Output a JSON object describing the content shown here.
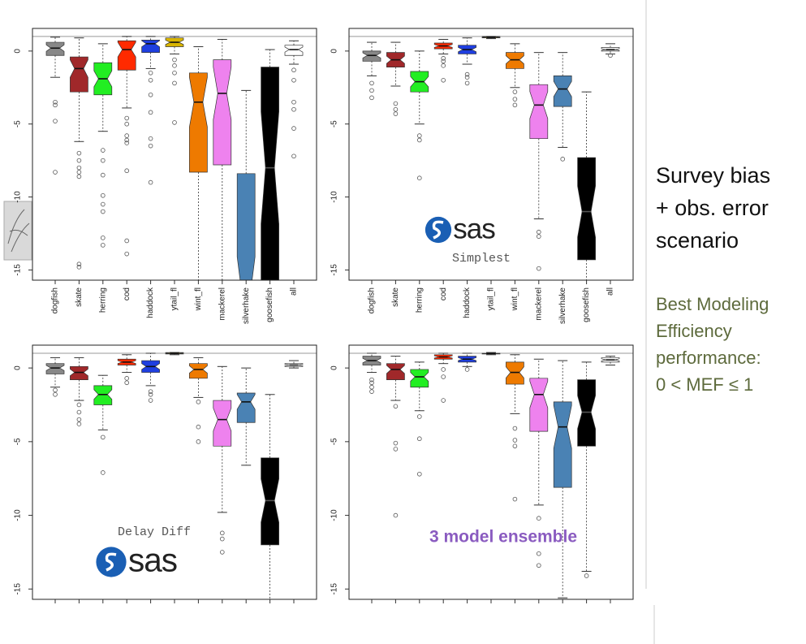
{
  "chart_data": [
    {
      "type": "box",
      "categories": [
        "dogfish",
        "skate",
        "herring",
        "cod",
        "haddock",
        "ytail_fl",
        "wint_fl",
        "mackerel",
        "silverhake",
        "goosefish",
        "all"
      ],
      "colors": [
        "#888888",
        "#a0282a",
        "#22ee22",
        "#ff2a00",
        "#1f3fe0",
        "#d8b400",
        "#ee7a00",
        "#ee82ee",
        "#4a82b4",
        "#000000",
        "#ffffff"
      ],
      "ylim": [
        -15.7,
        1.55
      ],
      "yticks": [
        -15,
        -10,
        -5,
        0
      ],
      "reference_line": 1,
      "boxes": [
        {
          "low": -1.8,
          "q1": -0.3,
          "median": 0.2,
          "q3": 0.6,
          "high": 0.95,
          "outliers": [
            -3.5,
            -3.7,
            -4.8,
            -8.3
          ]
        },
        {
          "low": -6.2,
          "q1": -2.8,
          "median": -1.2,
          "q3": -0.4,
          "high": 0.9,
          "outliers": [
            -7,
            -7.5,
            -8,
            -8.3,
            -8.6,
            -14.6,
            -14.8
          ]
        },
        {
          "low": -5.5,
          "q1": -3,
          "median": -1.9,
          "q3": -0.8,
          "high": 0.5,
          "outliers": [
            -6.8,
            -7.5,
            -8.5,
            -9.9,
            -10.5,
            -11,
            -12.8,
            -13.3
          ]
        },
        {
          "low": -3.9,
          "q1": -1.3,
          "median": 0.1,
          "q3": 0.7,
          "high": 1,
          "outliers": [
            -4.6,
            -5,
            -5.8,
            -6.1,
            -6.3,
            -8.2,
            -13,
            -13.9
          ]
        },
        {
          "low": -1.2,
          "q1": -0.1,
          "median": 0.5,
          "q3": 0.75,
          "high": 1,
          "outliers": [
            -1.5,
            -2,
            -3,
            -4.2,
            -6,
            -6.5,
            -9
          ]
        },
        {
          "low": -0.2,
          "q1": 0.3,
          "median": 0.6,
          "q3": 0.9,
          "high": 1,
          "outliers": [
            -0.6,
            -1,
            -1.5,
            -2.2,
            -4.9
          ]
        },
        {
          "low": -16,
          "q1": -8.3,
          "median": -3.5,
          "q3": -1.5,
          "high": 0.3,
          "outliers": []
        },
        {
          "low": -16,
          "q1": -7.8,
          "median": -2.9,
          "q3": -0.6,
          "high": 0.8,
          "outliers": []
        },
        {
          "low": -20,
          "q1": -18,
          "median": -16.5,
          "q3": -8.4,
          "high": -2.7,
          "outliers": []
        },
        {
          "low": -20,
          "q1": -16.5,
          "median": -8,
          "q3": -1.1,
          "high": 0.1,
          "outliers": []
        },
        {
          "low": -0.9,
          "q1": -0.3,
          "median": 0.1,
          "q3": 0.4,
          "high": 0.7,
          "outliers": [
            -1.3,
            -2,
            -3.5,
            -4,
            -5.3,
            -7.2
          ]
        }
      ]
    },
    {
      "type": "box",
      "label": "Simplest",
      "logo": "sas",
      "categories": [
        "dogfish",
        "skate",
        "herring",
        "cod",
        "haddock",
        "ytail_fl",
        "wint_fl",
        "mackerel",
        "silverhake",
        "goosefish",
        "all"
      ],
      "colors": [
        "#888888",
        "#a0282a",
        "#22ee22",
        "#ff2a00",
        "#1f3fe0",
        "#d8b400",
        "#ee7a00",
        "#ee82ee",
        "#4a82b4",
        "#000000",
        "#ffffff"
      ],
      "ylim": [
        -15.7,
        1.55
      ],
      "yticks": [
        -15,
        -10,
        -5,
        0
      ],
      "reference_line": 1,
      "boxes": [
        {
          "low": -1.7,
          "q1": -0.7,
          "median": -0.3,
          "q3": 0,
          "high": 0.6,
          "outliers": [
            -2.2,
            -2.7,
            -3.2
          ]
        },
        {
          "low": -2.4,
          "q1": -1.1,
          "median": -0.6,
          "q3": -0.1,
          "high": 0.6,
          "outliers": [
            -3.6,
            -4,
            -4.3
          ]
        },
        {
          "low": -5,
          "q1": -2.8,
          "median": -2.1,
          "q3": -1.4,
          "high": 0,
          "outliers": [
            -5.8,
            -6.1,
            -8.7
          ]
        },
        {
          "low": -0.2,
          "q1": 0.15,
          "median": 0.35,
          "q3": 0.55,
          "high": 0.8,
          "outliers": [
            -0.5,
            -0.7,
            -1,
            -2
          ]
        },
        {
          "low": -0.9,
          "q1": -0.2,
          "median": 0.1,
          "q3": 0.4,
          "high": 0.9,
          "outliers": [
            -1.6,
            -1.8,
            -2.2
          ]
        },
        {
          "low": 0.85,
          "q1": 0.9,
          "median": 0.95,
          "q3": 1,
          "high": 1,
          "outliers": []
        },
        {
          "low": -2.5,
          "q1": -1.2,
          "median": -0.6,
          "q3": -0.1,
          "high": 0.5,
          "outliers": [
            -2.8,
            -3.3,
            -3.7
          ]
        },
        {
          "low": -11.5,
          "q1": -6,
          "median": -3.7,
          "q3": -2.3,
          "high": -0.1,
          "outliers": [
            -12.4,
            -12.7,
            -14.9
          ]
        },
        {
          "low": -6.6,
          "q1": -3.8,
          "median": -2.6,
          "q3": -1.7,
          "high": -0.1,
          "outliers": [
            -7.4
          ]
        },
        {
          "low": -16,
          "q1": -14.3,
          "median": -11,
          "q3": -7.3,
          "high": -2.8,
          "outliers": []
        },
        {
          "low": -0.2,
          "q1": 0,
          "median": 0.1,
          "q3": 0.25,
          "high": 0.5,
          "outliers": [
            -0.3
          ]
        }
      ]
    },
    {
      "type": "box",
      "label": "Delay Diff",
      "logo": "sas",
      "categories": [
        null,
        null,
        null,
        null,
        null,
        null,
        null,
        null,
        null,
        null,
        null
      ],
      "colors": [
        "#888888",
        "#a0282a",
        "#22ee22",
        "#ff2a00",
        "#1f3fe0",
        "#d8b400",
        "#ee7a00",
        "#ee82ee",
        "#4a82b4",
        "#000000",
        "#ffffff"
      ],
      "ylim": [
        -15.7,
        1.55
      ],
      "yticks": [
        -15,
        -10,
        -5,
        0
      ],
      "reference_line": 1,
      "boxes": [
        {
          "low": -1.3,
          "q1": -0.4,
          "median": 0,
          "q3": 0.3,
          "high": 0.7,
          "outliers": [
            -1.5,
            -1.8
          ]
        },
        {
          "low": -2.2,
          "q1": -0.8,
          "median": -0.3,
          "q3": 0.1,
          "high": 0.7,
          "outliers": [
            -2.5,
            -3,
            -3.5,
            -3.8
          ]
        },
        {
          "low": -4.2,
          "q1": -2.5,
          "median": -1.8,
          "q3": -1.2,
          "high": -0.5,
          "outliers": [
            -4.7,
            -7.1
          ]
        },
        {
          "low": -0.3,
          "q1": 0.2,
          "median": 0.4,
          "q3": 0.6,
          "high": 0.9,
          "outliers": [
            -0.7,
            -1
          ]
        },
        {
          "low": -1.2,
          "q1": -0.3,
          "median": 0.1,
          "q3": 0.5,
          "high": 1,
          "outliers": [
            -1.6,
            -1.8,
            -2.2
          ]
        },
        {
          "low": 0.9,
          "q1": 0.95,
          "median": 1,
          "q3": 1.05,
          "high": 1.05,
          "outliers": []
        },
        {
          "low": -2,
          "q1": -0.7,
          "median": -0.1,
          "q3": 0.3,
          "high": 0.7,
          "outliers": [
            -2.3,
            -4,
            -5
          ]
        },
        {
          "low": -9.8,
          "q1": -5.3,
          "median": -3.5,
          "q3": -2.2,
          "high": 0.1,
          "outliers": [
            -11.2,
            -11.6,
            -12.5
          ]
        },
        {
          "low": -6.6,
          "q1": -3.7,
          "median": -2.3,
          "q3": -1.7,
          "high": 0,
          "outliers": []
        },
        {
          "low": -16,
          "q1": -12,
          "median": -9,
          "q3": -6.1,
          "high": -1.8,
          "outliers": []
        },
        {
          "low": 0,
          "q1": 0.1,
          "median": 0.2,
          "q3": 0.3,
          "high": 0.5,
          "outliers": []
        }
      ]
    },
    {
      "type": "box",
      "label": "3 model ensemble",
      "categories": [
        null,
        null,
        null,
        null,
        null,
        null,
        null,
        null,
        null,
        null,
        null
      ],
      "colors": [
        "#888888",
        "#a0282a",
        "#22ee22",
        "#ff2a00",
        "#1f3fe0",
        "#d8b400",
        "#ee7a00",
        "#ee82ee",
        "#4a82b4",
        "#000000",
        "#ffffff"
      ],
      "ylim": [
        -15.7,
        1.55
      ],
      "yticks": [
        -15,
        -10,
        -5,
        0
      ],
      "reference_line": 1,
      "boxes": [
        {
          "low": -0.3,
          "q1": 0.2,
          "median": 0.5,
          "q3": 0.8,
          "high": 1,
          "outliers": [
            -0.8,
            -1,
            -1.3,
            -1.6
          ]
        },
        {
          "low": -2.2,
          "q1": -0.8,
          "median": -0.1,
          "q3": 0.3,
          "high": 0.8,
          "outliers": [
            -2.6,
            -5.1,
            -5.5,
            -10
          ]
        },
        {
          "low": -2.9,
          "q1": -1.3,
          "median": -0.6,
          "q3": -0.1,
          "high": 0.4,
          "outliers": [
            -3.3,
            -4.8,
            -7.2
          ]
        },
        {
          "low": 0.3,
          "q1": 0.6,
          "median": 0.75,
          "q3": 0.9,
          "high": 1,
          "outliers": [
            -0.1,
            -0.6,
            -2.2
          ]
        },
        {
          "low": 0.1,
          "q1": 0.4,
          "median": 0.6,
          "q3": 0.8,
          "high": 1,
          "outliers": [
            -0.1
          ]
        },
        {
          "low": 0.9,
          "q1": 0.95,
          "median": 0.98,
          "q3": 1,
          "high": 1.05,
          "outliers": []
        },
        {
          "low": -3.1,
          "q1": -1.1,
          "median": -0.3,
          "q3": 0.4,
          "high": 0.9,
          "outliers": [
            -4.1,
            -4.9,
            -5.3,
            -8.9
          ]
        },
        {
          "low": -9.3,
          "q1": -4.3,
          "median": -1.8,
          "q3": -0.7,
          "high": 0.6,
          "outliers": [
            -10.2,
            -12.6,
            -13.4
          ]
        },
        {
          "low": -15.6,
          "q1": -8.1,
          "median": -4,
          "q3": -2.3,
          "high": 0.5,
          "outliers": []
        },
        {
          "low": -13.8,
          "q1": -5.3,
          "median": -3,
          "q3": -0.8,
          "high": 0.4,
          "outliers": [
            -14.1
          ]
        },
        {
          "low": 0.2,
          "q1": 0.4,
          "median": 0.55,
          "q3": 0.7,
          "high": 0.8,
          "outliers": []
        }
      ]
    }
  ],
  "side_text": {
    "scenario": [
      "Survey bias",
      "+ obs. error",
      "scenario"
    ],
    "criterion": [
      "Best Modeling",
      "Efficiency",
      "performance:",
      "0 < MEF ≤ 1"
    ]
  }
}
